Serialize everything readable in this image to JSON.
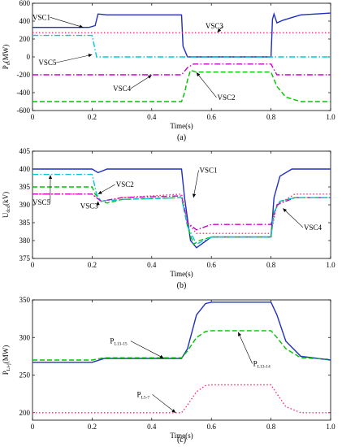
{
  "chart_data": [
    {
      "type": "line",
      "caption": "(a)",
      "xlabel": "Time(s)",
      "ylabel": "P",
      "ylabel_sub": "d",
      "ylabel_unit": "(MW)",
      "xlim": [
        0,
        1.0
      ],
      "ylim": [
        -600,
        600
      ],
      "x_ticks": [
        "0",
        "0.2",
        "0.4",
        "0.6",
        "0.8",
        "1.0"
      ],
      "y_ticks": [
        "-600",
        "-400",
        "-200",
        "0",
        "200",
        "400",
        "600"
      ],
      "colors": {
        "VSC1": "#1f2fbf",
        "VSC2": "#00c400",
        "VSC3": "#ff2d6f",
        "VSC4": "#cc00cc",
        "VSC5": "#00c8d8"
      },
      "series": [
        {
          "name": "VSC1",
          "style": "solid",
          "x": [
            0,
            0.19,
            0.21,
            0.22,
            0.25,
            0.3,
            0.5,
            0.505,
            0.52,
            0.8,
            0.805,
            0.81,
            0.82,
            0.84,
            0.87,
            0.9,
            1.0
          ],
          "y": [
            330,
            330,
            350,
            480,
            470,
            470,
            470,
            120,
            0,
            0,
            420,
            480,
            380,
            410,
            440,
            470,
            490
          ]
        },
        {
          "name": "VSC2",
          "style": "dash",
          "x": [
            0,
            0.5,
            0.51,
            0.52,
            0.53,
            0.55,
            0.6,
            0.8,
            0.82,
            0.85,
            0.9,
            1.0
          ],
          "y": [
            -500,
            -500,
            -400,
            -260,
            -150,
            -170,
            -170,
            -170,
            -330,
            -450,
            -500,
            -500
          ]
        },
        {
          "name": "VSC3",
          "style": "dot",
          "x": [
            0,
            0.2,
            0.5,
            0.8,
            1.0
          ],
          "y": [
            270,
            270,
            270,
            270,
            270
          ]
        },
        {
          "name": "VSC4",
          "style": "dashdot",
          "x": [
            0,
            0.5,
            0.52,
            0.54,
            0.6,
            0.8,
            0.82,
            1.0
          ],
          "y": [
            -200,
            -200,
            -120,
            -80,
            -80,
            -80,
            -200,
            -200
          ]
        },
        {
          "name": "VSC5",
          "style": "dashdot",
          "x": [
            0,
            0.2,
            0.215,
            0.3,
            1.0
          ],
          "y": [
            240,
            240,
            0,
            0,
            0
          ]
        }
      ],
      "labels": [
        {
          "text": "VSC1",
          "x": 0.0,
          "y": 470
        },
        {
          "text": "VSC3",
          "x": 0.58,
          "y": 410
        },
        {
          "text": "VSC5",
          "x": 0.02,
          "y": 0
        },
        {
          "text": "VSC4",
          "x": 0.27,
          "y": -290
        },
        {
          "text": "VSC2",
          "x": 0.62,
          "y": -390
        }
      ]
    },
    {
      "type": "line",
      "caption": "(b)",
      "xlabel": "Time(s)",
      "ylabel": "U",
      "ylabel_sub": "dcd",
      "ylabel_unit": "(kV)",
      "xlim": [
        0,
        1.0
      ],
      "ylim": [
        375,
        405
      ],
      "x_ticks": [
        "0",
        "0.2",
        "0.4",
        "0.6",
        "0.8",
        "1.0"
      ],
      "y_ticks": [
        "375",
        "380",
        "385",
        "390",
        "395",
        "400",
        "405"
      ],
      "colors": {
        "VSC1": "#1f2fbf",
        "VSC2": "#00c400",
        "VSC3": "#ff2d6f",
        "VSC4": "#cc00cc",
        "VSC5": "#00c8d8"
      },
      "series": [
        {
          "name": "VSC1",
          "style": "solid",
          "x": [
            0,
            0.2,
            0.22,
            0.25,
            0.5,
            0.51,
            0.53,
            0.55,
            0.6,
            0.8,
            0.81,
            0.83,
            0.87,
            1.0
          ],
          "y": [
            400,
            400,
            399,
            400,
            400,
            392,
            380,
            378,
            381,
            381,
            392,
            398,
            400,
            400
          ]
        },
        {
          "name": "VSC2",
          "style": "dash",
          "x": [
            0,
            0.2,
            0.21,
            0.23,
            0.25,
            0.3,
            0.5,
            0.52,
            0.54,
            0.56,
            0.6,
            0.8,
            0.81,
            0.83,
            0.88,
            1.0
          ],
          "y": [
            395,
            395,
            393,
            391,
            390.5,
            391.5,
            392,
            384,
            379,
            380,
            381,
            381,
            388,
            391,
            392,
            392
          ]
        },
        {
          "name": "VSC3",
          "style": "dot",
          "x": [
            0,
            0.2,
            0.23,
            0.3,
            0.5,
            0.52,
            0.55,
            0.6,
            0.8,
            0.82,
            0.88,
            1.0
          ],
          "y": [
            393,
            393,
            391,
            392,
            393,
            385,
            382,
            382,
            382,
            390,
            393,
            393
          ]
        },
        {
          "name": "VSC4",
          "style": "dashdot",
          "x": [
            0,
            0.2,
            0.23,
            0.3,
            0.5,
            0.52,
            0.55,
            0.6,
            0.8,
            0.82,
            0.88,
            1.0
          ],
          "y": [
            393,
            393,
            391,
            392,
            392.5,
            385,
            383,
            384.5,
            384.5,
            390,
            392,
            392
          ]
        },
        {
          "name": "VSC5",
          "style": "dashdot",
          "x": [
            0,
            0.2,
            0.215,
            0.23,
            0.3,
            0.5,
            0.52,
            0.55,
            0.6,
            0.8,
            0.81,
            0.83,
            0.88,
            1.0
          ],
          "y": [
            398.5,
            398.5,
            393,
            391,
            391.5,
            392,
            384,
            379,
            381,
            381,
            388,
            391,
            392,
            392
          ]
        }
      ],
      "labels": [
        {
          "text": "VSC1",
          "x": 0.56,
          "y": 399
        },
        {
          "text": "VSC2",
          "x": 0.28,
          "y": 395
        },
        {
          "text": "VSC5",
          "x": 0.0,
          "y": 390
        },
        {
          "text": "VSC3",
          "x": 0.16,
          "y": 389
        },
        {
          "text": "VSC4",
          "x": 0.91,
          "y": 383
        }
      ]
    },
    {
      "type": "line",
      "caption": "(c)",
      "xlabel": "Time(s)",
      "ylabel": "P",
      "ylabel_sub": "Li-j",
      "ylabel_unit": "(MW)",
      "xlim": [
        0,
        1.0
      ],
      "ylim": [
        190,
        350
      ],
      "x_ticks": [
        "0",
        "0.2",
        "0.4",
        "0.6",
        "0.8",
        "1.0"
      ],
      "y_ticks": [
        "200",
        "250",
        "300",
        "350"
      ],
      "colors": {
        "PL13-15": "#1f2fbf",
        "PL13-14": "#00c400",
        "PL5-7": "#ff2d6f"
      },
      "series": [
        {
          "name": "PL13-15",
          "label_main": "P",
          "label_sub": "L13-15",
          "style": "solid",
          "x": [
            0,
            0.2,
            0.24,
            0.5,
            0.52,
            0.55,
            0.58,
            0.6,
            0.8,
            0.82,
            0.85,
            0.9,
            1.0
          ],
          "y": [
            267,
            267,
            272,
            272,
            285,
            330,
            345,
            347,
            347,
            330,
            295,
            275,
            270
          ]
        },
        {
          "name": "PL13-14",
          "label_main": "P",
          "label_sub": "L13-14",
          "style": "dash",
          "x": [
            0,
            0.2,
            0.24,
            0.5,
            0.52,
            0.55,
            0.58,
            0.6,
            0.8,
            0.82,
            0.85,
            0.9,
            1.0
          ],
          "y": [
            270,
            270,
            273,
            273,
            282,
            300,
            308,
            309,
            309,
            300,
            285,
            273,
            271
          ]
        },
        {
          "name": "PL5-7",
          "label_main": "P",
          "label_sub": "L5-7",
          "style": "dot",
          "x": [
            0,
            0.2,
            0.5,
            0.52,
            0.55,
            0.58,
            0.6,
            0.8,
            0.82,
            0.85,
            0.9,
            1.0
          ],
          "y": [
            200,
            200,
            200,
            210,
            228,
            236,
            237,
            237,
            225,
            208,
            200,
            200
          ]
        }
      ],
      "labels": [
        {
          "text": "P",
          "sub": "L13-15",
          "x": 0.26,
          "y": 292
        },
        {
          "text": "P",
          "sub": "L13-14",
          "x": 0.74,
          "y": 262
        },
        {
          "text": "P",
          "sub": "L5-7",
          "x": 0.35,
          "y": 221
        }
      ]
    }
  ]
}
